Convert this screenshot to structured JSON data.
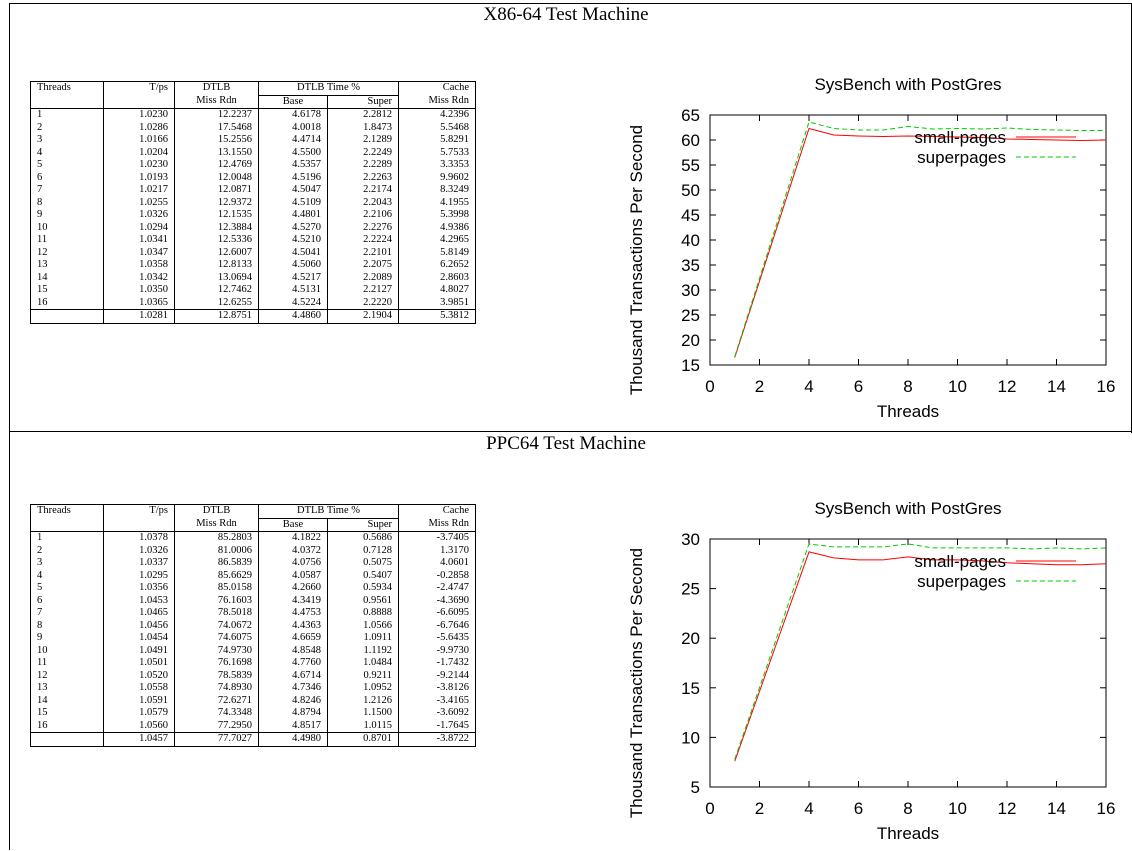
{
  "sections": [
    {
      "title": "X86-64 Test Machine",
      "table": {
        "header_top": [
          "Threads",
          "T/ps",
          "DTLB",
          "DTLB Time %",
          "Cache"
        ],
        "header_sub": [
          "",
          "",
          "Miss Rdn",
          "Base",
          "Super",
          "Miss Rdn"
        ],
        "rows": [
          [
            "1",
            "1.0230",
            "12.2237",
            "4.6178",
            "2.2812",
            "4.2396"
          ],
          [
            "2",
            "1.0286",
            "17.5468",
            "4.0018",
            "1.8473",
            "5.5468"
          ],
          [
            "3",
            "1.0166",
            "15.2556",
            "4.4714",
            "2.1289",
            "5.8291"
          ],
          [
            "4",
            "1.0204",
            "13.1550",
            "4.5500",
            "2.2249",
            "5.7533"
          ],
          [
            "5",
            "1.0230",
            "12.4769",
            "4.5357",
            "2.2289",
            "3.3353"
          ],
          [
            "6",
            "1.0193",
            "12.0048",
            "4.5196",
            "2.2263",
            "9.9602"
          ],
          [
            "7",
            "1.0217",
            "12.0871",
            "4.5047",
            "2.2174",
            "8.3249"
          ],
          [
            "8",
            "1.0255",
            "12.9372",
            "4.5109",
            "2.2043",
            "4.1955"
          ],
          [
            "9",
            "1.0326",
            "12.1535",
            "4.4801",
            "2.2106",
            "5.3998"
          ],
          [
            "10",
            "1.0294",
            "12.3884",
            "4.5270",
            "2.2276",
            "4.9386"
          ],
          [
            "11",
            "1.0341",
            "12.5336",
            "4.5210",
            "2.2224",
            "4.2965"
          ],
          [
            "12",
            "1.0347",
            "12.6007",
            "4.5041",
            "2.2101",
            "5.8149"
          ],
          [
            "13",
            "1.0358",
            "12.8133",
            "4.5060",
            "2.2075",
            "6.2652"
          ],
          [
            "14",
            "1.0342",
            "13.0694",
            "4.5217",
            "2.2089",
            "2.8603"
          ],
          [
            "15",
            "1.0350",
            "12.7462",
            "4.5131",
            "2.2127",
            "4.8027"
          ],
          [
            "16",
            "1.0365",
            "12.6255",
            "4.5224",
            "2.2220",
            "3.9851"
          ]
        ],
        "summary": [
          "",
          "1.0281",
          "12.8751",
          "4.4860",
          "2.1904",
          "5.3812"
        ]
      }
    },
    {
      "title": "PPC64 Test Machine",
      "table": {
        "header_top": [
          "Threads",
          "T/ps",
          "DTLB",
          "DTLB Time %",
          "Cache"
        ],
        "header_sub": [
          "",
          "",
          "Miss Rdn",
          "Base",
          "Super",
          "Miss Rdn"
        ],
        "rows": [
          [
            "1",
            "1.0378",
            "85.2803",
            "4.1822",
            "0.5686",
            "-3.7405"
          ],
          [
            "2",
            "1.0326",
            "81.0006",
            "4.0372",
            "0.7128",
            "1.3170"
          ],
          [
            "3",
            "1.0337",
            "86.5839",
            "4.0756",
            "0.5075",
            "4.0601"
          ],
          [
            "4",
            "1.0295",
            "85.6629",
            "4.0587",
            "0.5407",
            "-0.2858"
          ],
          [
            "5",
            "1.0356",
            "85.0158",
            "4.2660",
            "0.5934",
            "-2.4747"
          ],
          [
            "6",
            "1.0453",
            "76.1603",
            "4.3419",
            "0.9561",
            "-4.3690"
          ],
          [
            "7",
            "1.0465",
            "78.5018",
            "4.4753",
            "0.8888",
            "-6.6095"
          ],
          [
            "8",
            "1.0456",
            "74.0672",
            "4.4363",
            "1.0566",
            "-6.7646"
          ],
          [
            "9",
            "1.0454",
            "74.6075",
            "4.6659",
            "1.0911",
            "-5.6435"
          ],
          [
            "10",
            "1.0491",
            "74.9730",
            "4.8548",
            "1.1192",
            "-9.9730"
          ],
          [
            "11",
            "1.0501",
            "76.1698",
            "4.7760",
            "1.0484",
            "-1.7432"
          ],
          [
            "12",
            "1.0520",
            "78.5839",
            "4.6714",
            "0.9211",
            "-9.2144"
          ],
          [
            "13",
            "1.0558",
            "74.8930",
            "4.7346",
            "1.0952",
            "-3.8126"
          ],
          [
            "14",
            "1.0591",
            "72.6271",
            "4.8246",
            "1.2126",
            "-3.4165"
          ],
          [
            "15",
            "1.0579",
            "74.3348",
            "4.8794",
            "1.1500",
            "-3.6092"
          ],
          [
            "16",
            "1.0560",
            "77.2950",
            "4.8517",
            "1.0115",
            "-1.7645"
          ]
        ],
        "summary": [
          "",
          "1.0457",
          "77.7027",
          "4.4980",
          "0.8701",
          "-3.8722"
        ]
      }
    }
  ],
  "chart_data": [
    {
      "type": "line",
      "title": "SysBench with PostGres",
      "xlabel": "Threads",
      "ylabel": "Thousand Transactions Per Second",
      "xlim": [
        0,
        16
      ],
      "ylim": [
        15,
        65
      ],
      "xticks": [
        0,
        2,
        4,
        6,
        8,
        10,
        12,
        14,
        16
      ],
      "yticks": [
        15,
        20,
        25,
        30,
        35,
        40,
        45,
        50,
        55,
        60,
        65
      ],
      "grid": false,
      "legend_position": "top-right",
      "x": [
        1,
        4,
        5,
        6,
        7,
        8,
        9,
        10,
        11,
        12,
        13,
        14,
        15,
        16
      ],
      "series": [
        {
          "name": "small-pages",
          "color": "#ff0000",
          "dash": "solid",
          "values": [
            16.5,
            62.3,
            61.0,
            60.8,
            60.7,
            60.8,
            60.7,
            60.6,
            60.5,
            60.2,
            60.1,
            60.0,
            59.9,
            60.0
          ]
        },
        {
          "name": "superpages",
          "color": "#00cc00",
          "dash": "dashed",
          "values": [
            16.7,
            63.6,
            62.3,
            62.0,
            62.0,
            62.7,
            62.2,
            62.3,
            62.2,
            62.4,
            62.1,
            62.0,
            61.9,
            61.9
          ]
        }
      ]
    },
    {
      "type": "line",
      "title": "SysBench with PostGres",
      "xlabel": "Threads",
      "ylabel": "Thousand Transactions Per Second",
      "xlim": [
        0,
        16
      ],
      "ylim": [
        5,
        30
      ],
      "xticks": [
        0,
        2,
        4,
        6,
        8,
        10,
        12,
        14,
        16
      ],
      "yticks": [
        5,
        10,
        15,
        20,
        25,
        30
      ],
      "grid": false,
      "legend_position": "top-right",
      "x": [
        1,
        4,
        5,
        6,
        7,
        8,
        9,
        10,
        11,
        12,
        13,
        14,
        15,
        16
      ],
      "series": [
        {
          "name": "small-pages",
          "color": "#ff0000",
          "dash": "solid",
          "values": [
            7.6,
            28.7,
            28.1,
            27.9,
            27.9,
            28.2,
            27.9,
            27.9,
            27.8,
            27.6,
            27.5,
            27.4,
            27.4,
            27.5
          ]
        },
        {
          "name": "superpages",
          "color": "#00cc00",
          "dash": "dashed",
          "values": [
            7.8,
            29.5,
            29.2,
            29.2,
            29.2,
            29.5,
            29.1,
            29.1,
            29.1,
            29.1,
            29.0,
            29.1,
            29.0,
            29.1
          ]
        }
      ]
    }
  ]
}
